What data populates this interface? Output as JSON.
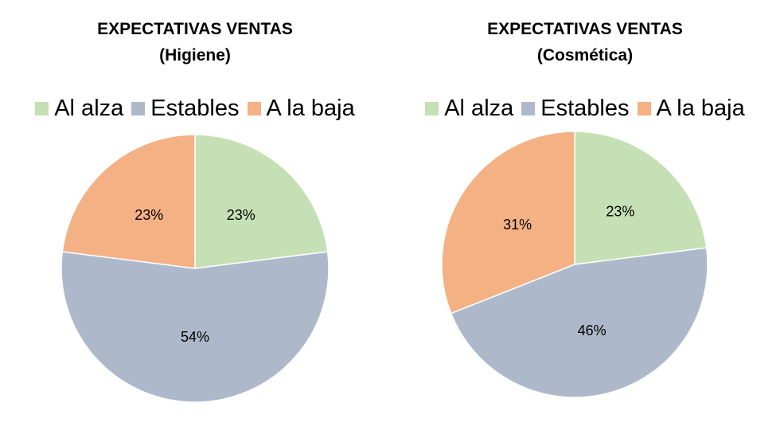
{
  "colors": {
    "al_alza": "#c5e0b4",
    "estables": "#adb9ca",
    "a_la_baja": "#f4b183"
  },
  "chart_data": [
    {
      "type": "pie",
      "title": "EXPECTATIVAS VENTAS",
      "subtitle": "(Higiene)",
      "legend_position": "top",
      "categories": [
        "Al alza",
        "Estables",
        "A la baja"
      ],
      "values": [
        23,
        54,
        23
      ],
      "labels": [
        "23%",
        "54%",
        "23%"
      ]
    },
    {
      "type": "pie",
      "title": "EXPECTATIVAS VENTAS",
      "subtitle": "(Cosmética)",
      "legend_position": "top",
      "categories": [
        "Al alza",
        "Estables",
        "A la baja"
      ],
      "values": [
        23,
        46,
        31
      ],
      "labels": [
        "23%",
        "46%",
        "31%"
      ]
    }
  ]
}
